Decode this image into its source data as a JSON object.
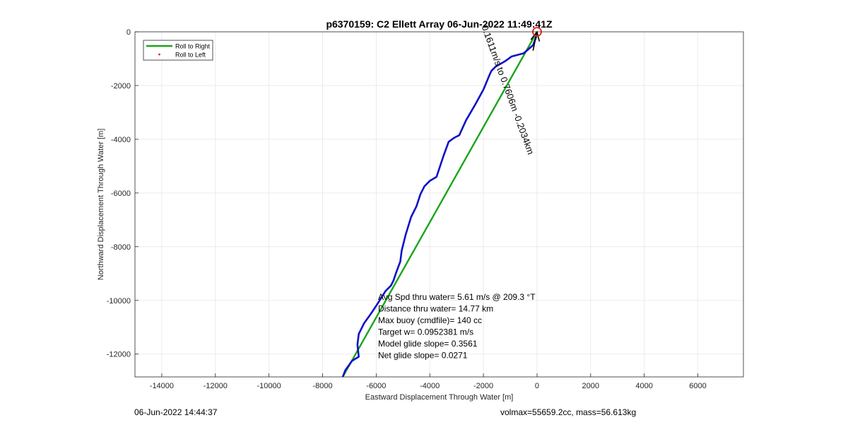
{
  "chart_data": {
    "type": "line",
    "title": "p6370159: C2 Ellett Array 06-Jun-2022 11:49:41Z",
    "xlabel": "Eastward Displacement Through Water [m]",
    "ylabel": "Northward Displacement Through Water [m]",
    "xlim": [
      -15000,
      7700
    ],
    "ylim": [
      -12850,
      0
    ],
    "xticks": [
      -14000,
      -12000,
      -10000,
      -8000,
      -6000,
      -4000,
      -2000,
      0,
      2000,
      4000,
      6000
    ],
    "yticks": [
      0,
      -2000,
      -4000,
      -6000,
      -8000,
      -10000,
      -12000
    ],
    "xtick_labels": [
      "-14000",
      "-12000",
      "-10000",
      "-8000",
      "-6000",
      "-4000",
      "-2000",
      "0",
      "2000",
      "4000",
      "6000"
    ],
    "ytick_labels": [
      "0",
      "-2000",
      "-4000",
      "-6000",
      "-8000",
      "-10000",
      "-12000"
    ],
    "grid": true,
    "legend": {
      "placement": "top-left",
      "entries": [
        {
          "label": "Roll to Right",
          "color": "#1aa51a",
          "style": "line"
        },
        {
          "label": "Roll to Left",
          "color": "#e8201c",
          "style": "dot"
        }
      ]
    },
    "series": [
      {
        "name": "Roll to Right",
        "color": "#1aa51a",
        "x": [
          0,
          -7250
        ],
        "y": [
          0,
          -12850
        ]
      },
      {
        "color": "#1010c8",
        "x": [
          -30,
          -150,
          -500,
          -950,
          -1200,
          -1550,
          -1700,
          -1750,
          -2000,
          -2300,
          -2650,
          -2900,
          -3100,
          -3300,
          -3500,
          -3750,
          -4000,
          -4200,
          -4350,
          -4500,
          -4700,
          -4900,
          -5050,
          -5100,
          -5250,
          -5350,
          -5450,
          -5650,
          -6000,
          -6200,
          -6450,
          -6650,
          -6700,
          -6650,
          -6900,
          -7150,
          -7250
        ],
        "y": [
          -180,
          -500,
          -800,
          -920,
          -1100,
          -1300,
          -1450,
          -1550,
          -2150,
          -2700,
          -3300,
          -3850,
          -3950,
          -4100,
          -4650,
          -5400,
          -5550,
          -5750,
          -6050,
          -6500,
          -6900,
          -7550,
          -8150,
          -8550,
          -8950,
          -9250,
          -9450,
          -9650,
          -10200,
          -10500,
          -10850,
          -11250,
          -11650,
          -12100,
          -12250,
          -12600,
          -12850
        ]
      }
    ],
    "arrow": {
      "label": "0.1611m/s to 0.7606m -0.2034km",
      "x_tail": -150,
      "y_tail": -700,
      "x_tip": 0,
      "y_tip": 0,
      "color": "#000000"
    },
    "marker": {
      "x": 0,
      "y": 0,
      "color": "#e8201c"
    },
    "stats": [
      "Avg Spd thru water=  5.61 m/s @ 209.3 °T",
      "Distance thru water= 14.77 km",
      "Max buoy (cmdfile)= 140 cc",
      "Target w= 0.0952381 m/s",
      "Model glide slope= 0.3561",
      "Net glide slope= 0.0271"
    ]
  },
  "footer": {
    "timestamp": "06-Jun-2022 14:44:37",
    "volmass": "volmax=55659.2cc, mass=56.613kg"
  }
}
